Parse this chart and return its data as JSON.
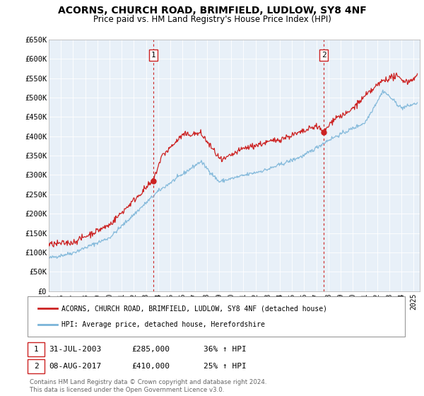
{
  "title": "ACORNS, CHURCH ROAD, BRIMFIELD, LUDLOW, SY8 4NF",
  "subtitle": "Price paid vs. HM Land Registry's House Price Index (HPI)",
  "ylim": [
    0,
    650000
  ],
  "yticks": [
    0,
    50000,
    100000,
    150000,
    200000,
    250000,
    300000,
    350000,
    400000,
    450000,
    500000,
    550000,
    600000,
    650000
  ],
  "ytick_labels": [
    "£0",
    "£50K",
    "£100K",
    "£150K",
    "£200K",
    "£250K",
    "£300K",
    "£350K",
    "£400K",
    "£450K",
    "£500K",
    "£550K",
    "£600K",
    "£650K"
  ],
  "hpi_color": "#7ab4d8",
  "price_color": "#cc2222",
  "vline_color": "#cc2222",
  "marker1_year": 2003.58,
  "marker1_price": 285000,
  "marker2_year": 2017.6,
  "marker2_price": 410000,
  "legend_label1": "ACORNS, CHURCH ROAD, BRIMFIELD, LUDLOW, SY8 4NF (detached house)",
  "legend_label2": "HPI: Average price, detached house, Herefordshire",
  "note1_num": "1",
  "note1_date": "31-JUL-2003",
  "note1_price": "£285,000",
  "note1_hpi": "36% ↑ HPI",
  "note2_num": "2",
  "note2_date": "08-AUG-2017",
  "note2_price": "£410,000",
  "note2_hpi": "25% ↑ HPI",
  "copyright": "Contains HM Land Registry data © Crown copyright and database right 2024.\nThis data is licensed under the Open Government Licence v3.0.",
  "background_color": "#ffffff",
  "plot_bg_color": "#e8f0f8",
  "grid_color": "#ffffff",
  "xmin": 1995,
  "xmax": 2025.5
}
